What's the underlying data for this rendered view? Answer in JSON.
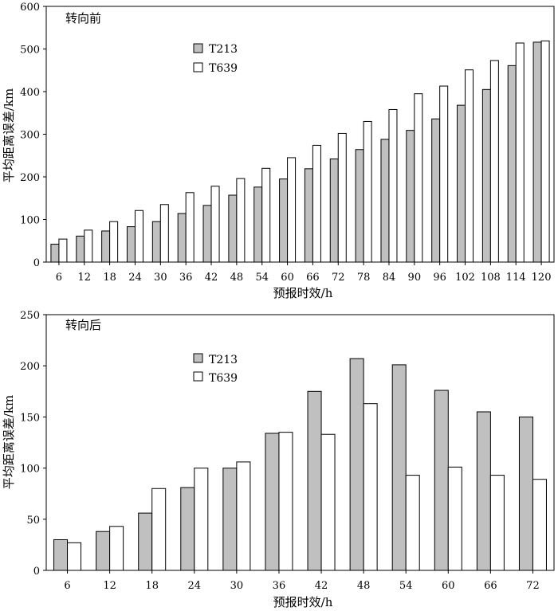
{
  "chart_data": [
    {
      "type": "bar",
      "title": "转向前",
      "xlabel": "预报时效/h",
      "ylabel": "平均距离误差/km",
      "ylim": [
        0,
        600
      ],
      "yticks": [
        0,
        100,
        200,
        300,
        400,
        500,
        600
      ],
      "legend_position": "top-left",
      "categories": [
        "6",
        "12",
        "18",
        "24",
        "30",
        "36",
        "42",
        "48",
        "54",
        "60",
        "66",
        "72",
        "78",
        "84",
        "90",
        "96",
        "102",
        "108",
        "114",
        "120"
      ],
      "series": [
        {
          "name": "T213",
          "color": "#c0c0c0",
          "values": [
            42,
            61,
            73,
            83,
            95,
            114,
            133,
            157,
            176,
            195,
            219,
            242,
            264,
            288,
            309,
            336,
            368,
            405,
            461,
            516
          ]
        },
        {
          "name": "T639",
          "color": "#ffffff",
          "values": [
            54,
            75,
            95,
            121,
            135,
            163,
            178,
            196,
            220,
            245,
            274,
            302,
            330,
            358,
            395,
            413,
            451,
            473,
            514,
            519
          ]
        }
      ]
    },
    {
      "type": "bar",
      "title": "转向后",
      "xlabel": "预报时效/h",
      "ylabel": "平均距离误差/km",
      "ylim": [
        0,
        250
      ],
      "yticks": [
        0,
        50,
        100,
        150,
        200,
        250
      ],
      "legend_position": "top-left",
      "categories": [
        "6",
        "12",
        "18",
        "24",
        "30",
        "36",
        "42",
        "48",
        "54",
        "60",
        "66",
        "72"
      ],
      "series": [
        {
          "name": "T213",
          "color": "#c0c0c0",
          "values": [
            30,
            38,
            56,
            81,
            100,
            134,
            175,
            207,
            201,
            176,
            155,
            150
          ]
        },
        {
          "name": "T639",
          "color": "#ffffff",
          "values": [
            27,
            43,
            80,
            100,
            106,
            135,
            133,
            163,
            93,
            101,
            93,
            89
          ]
        }
      ]
    }
  ]
}
